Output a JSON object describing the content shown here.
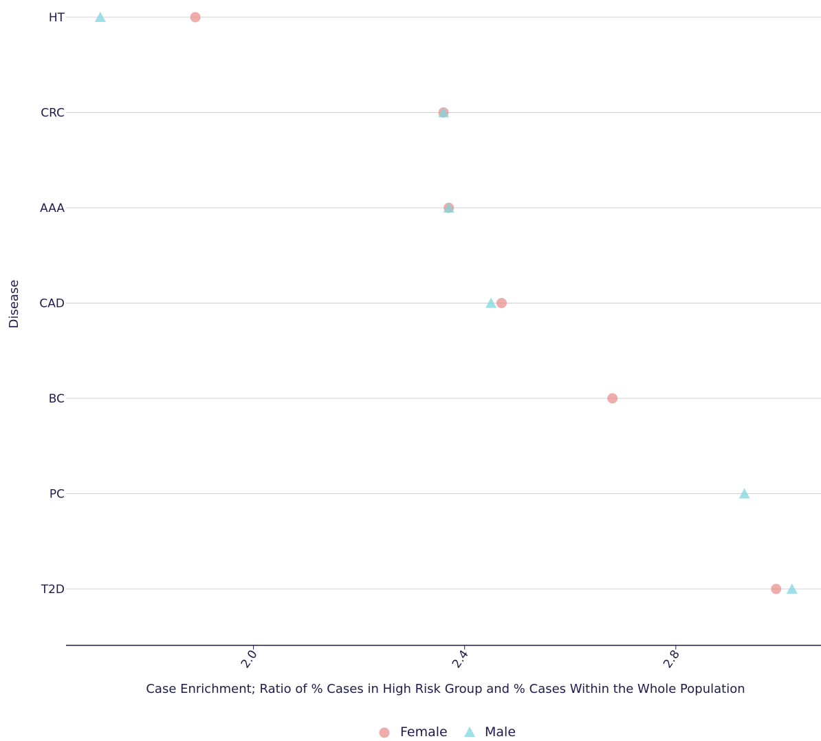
{
  "chart_data": {
    "type": "scatter",
    "title": "",
    "xlabel": "Case Enrichment; Ratio of % Cases in High Risk Group and % Cases Within the Whole Population",
    "ylabel": "Disease",
    "categories": [
      "HT",
      "CRC",
      "AAA",
      "CAD",
      "BC",
      "PC",
      "T2D"
    ],
    "xlim": [
      1.645,
      3.075
    ],
    "x_ticks": [
      2.0,
      2.4,
      2.8
    ],
    "x_tick_labels": [
      "2.0",
      "2.4",
      "2.8"
    ],
    "grid": "horizontal",
    "legend_position": "bottom",
    "series": [
      {
        "name": "Female",
        "marker": "circle",
        "color": "#e8928f",
        "points": [
          {
            "category": "HT",
            "x": 1.89
          },
          {
            "category": "CRC",
            "x": 2.36
          },
          {
            "category": "AAA",
            "x": 2.37
          },
          {
            "category": "CAD",
            "x": 2.47
          },
          {
            "category": "BC",
            "x": 2.68
          },
          {
            "category": "T2D",
            "x": 2.99
          }
        ]
      },
      {
        "name": "Male",
        "marker": "triangle",
        "color": "#7ed6dc",
        "points": [
          {
            "category": "HT",
            "x": 1.71
          },
          {
            "category": "CRC",
            "x": 2.36
          },
          {
            "category": "AAA",
            "x": 2.37
          },
          {
            "category": "CAD",
            "x": 2.45
          },
          {
            "category": "PC",
            "x": 2.93
          },
          {
            "category": "T2D",
            "x": 3.02
          }
        ]
      }
    ]
  },
  "colors": {
    "axis": "#1e1b4b",
    "grid": "#d0d0d0",
    "text": "#1e1b4b"
  }
}
